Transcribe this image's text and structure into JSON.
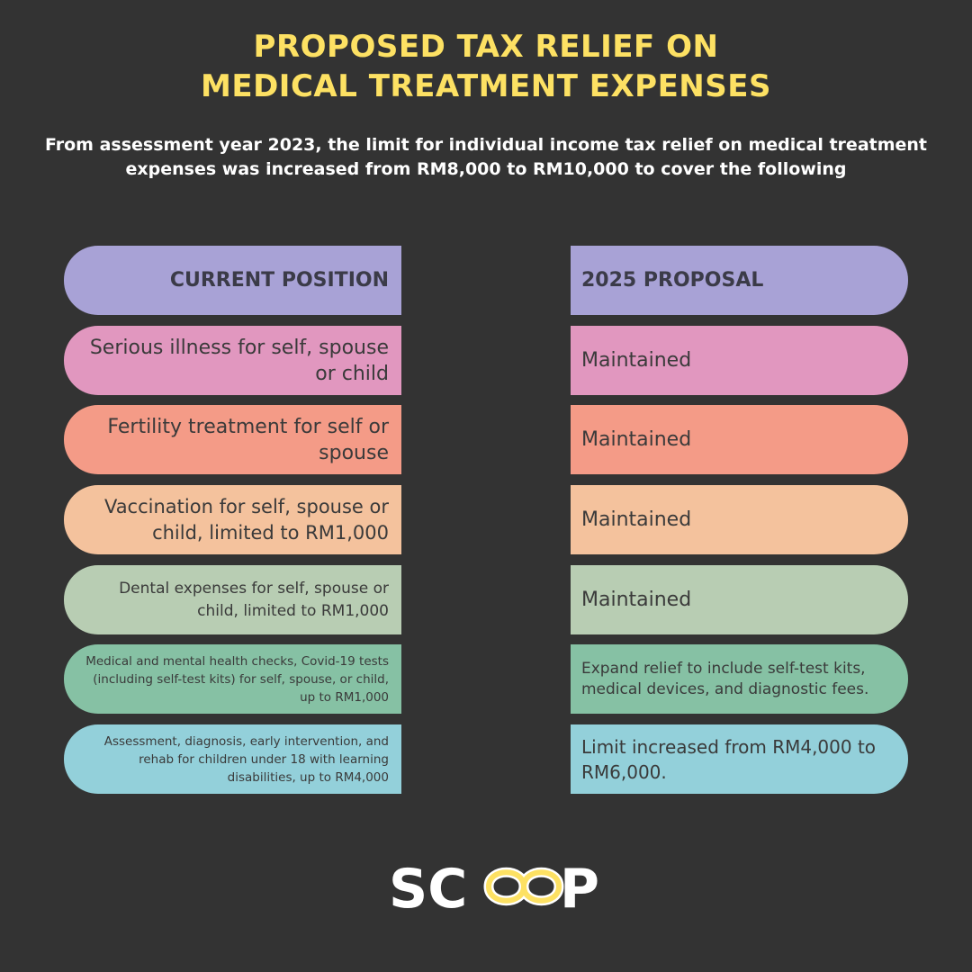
{
  "title": {
    "line1": "PROPOSED TAX RELIEF ON",
    "line2": "MEDICAL TREATMENT EXPENSES"
  },
  "subtitle": "From assessment year 2023, the limit for individual income tax relief on medical treatment expenses was increased from RM8,000 to RM10,000 to cover the following",
  "table": {
    "header_left": "CURRENT POSITION",
    "header_right": "2025 PROPOSAL",
    "header_color": "#a8a2d6",
    "rows": [
      {
        "current": "Serious illness for self, spouse or child",
        "proposal": "Maintained",
        "color": "#e197bf"
      },
      {
        "current": "Fertility treatment for self or spouse",
        "proposal": "Maintained",
        "color": "#f49b87"
      },
      {
        "current": "Vaccination for self, spouse or child, limited to RM1,000",
        "proposal": "Maintained",
        "color": "#f4c29d"
      },
      {
        "current": "Dental expenses for self, spouse or child, limited to RM1,000",
        "proposal": "Maintained",
        "color": "#b8cdb3"
      },
      {
        "current": "Medical and mental health checks, Covid-19 tests (including self-test kits) for self, spouse, or child, up to RM1,000",
        "proposal": "Expand relief to include self-test kits, medical devices, and diagnostic fees.",
        "color": "#86c1a4"
      },
      {
        "current": "Assessment, diagnosis, early intervention, and rehab for children under 18 with learning disabilities, up to RM4,000",
        "proposal": "Limit increased from RM4,000 to RM6,000.",
        "color": "#93d0da"
      }
    ]
  },
  "logo": {
    "text": "SCOOP",
    "icon": "infinity-icon",
    "text_color": "#ffffff",
    "accent_color": "#fde163"
  }
}
